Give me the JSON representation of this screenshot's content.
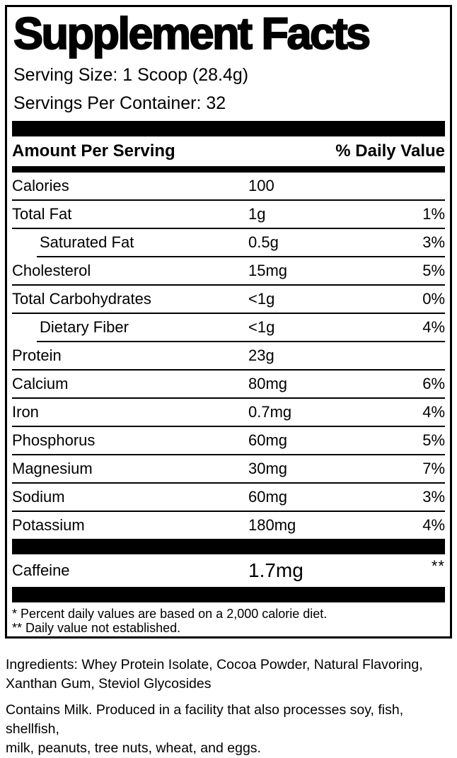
{
  "label": {
    "title": "Supplement Facts",
    "serving_size": "Serving Size: 1 Scoop (28.4g)",
    "servings_per_container": "Servings Per Container: 32",
    "header": {
      "amount": "Amount Per Serving",
      "daily_value": "% Daily Value"
    },
    "rows": [
      {
        "name": "Calories",
        "amount": "100",
        "dv": ""
      },
      {
        "name": "Total Fat",
        "amount": "1g",
        "dv": "1%"
      },
      {
        "name": "Saturated Fat",
        "amount": "0.5g",
        "dv": "3%"
      },
      {
        "name": "Cholesterol",
        "amount": "15mg",
        "dv": "5%"
      },
      {
        "name": "Total Carbohydrates",
        "amount": "<1g",
        "dv": "0%"
      },
      {
        "name": "Dietary Fiber",
        "amount": "<1g",
        "dv": "4%"
      },
      {
        "name": "Protein",
        "amount": "23g",
        "dv": ""
      },
      {
        "name": "Calcium",
        "amount": "80mg",
        "dv": "6%"
      },
      {
        "name": "Iron",
        "amount": "0.7mg",
        "dv": "4%"
      },
      {
        "name": "Phosphorus",
        "amount": "60mg",
        "dv": "5%"
      },
      {
        "name": "Magnesium",
        "amount": "30mg",
        "dv": "7%"
      },
      {
        "name": "Sodium",
        "amount": "60mg",
        "dv": "3%"
      },
      {
        "name": "Potassium",
        "amount": "180mg",
        "dv": "4%"
      }
    ],
    "caffeine": {
      "name": "Caffeine",
      "amount": "1.7mg",
      "dv": "**"
    },
    "footnotes": [
      "* Percent daily values are based on a 2,000 calorie diet.",
      "** Daily value not established."
    ]
  },
  "ingredients": "Ingredients: Whey Protein Isolate, Cocoa Powder, Natural Flavoring,\nXanthan Gum, Steviol Glycosides",
  "allergen": "Contains Milk. Produced in a facility that also processes soy, fish, shellfish,\nmilk, peanuts, tree nuts, wheat, and eggs.",
  "colors": {
    "ink": "#000000",
    "background": "#ffffff"
  }
}
